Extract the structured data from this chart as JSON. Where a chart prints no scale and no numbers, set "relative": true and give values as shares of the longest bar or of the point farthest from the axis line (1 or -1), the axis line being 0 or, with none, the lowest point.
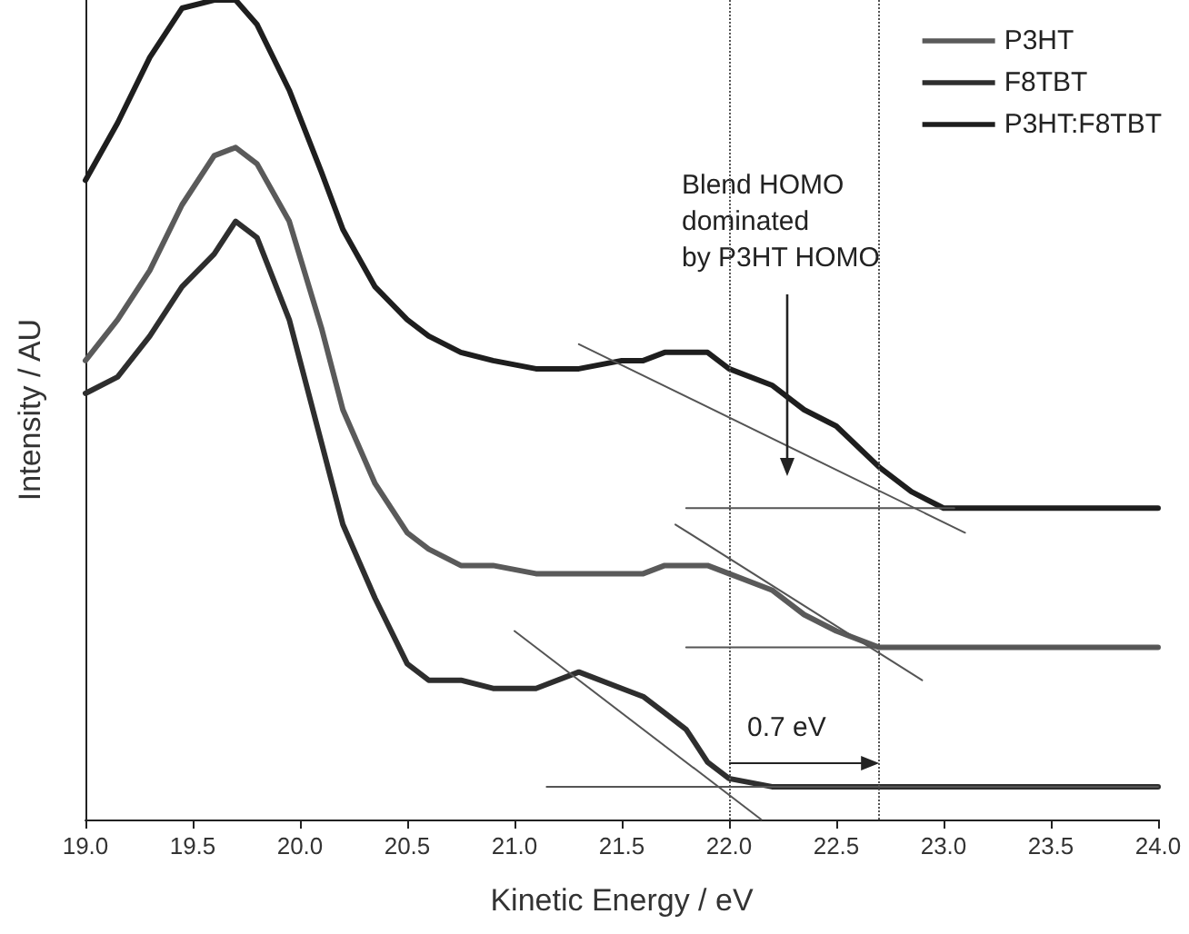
{
  "chart_data": {
    "type": "line",
    "relative": true,
    "xlabel": "Kinetic Energy / eV",
    "ylabel": "Intensity / AU",
    "xlim": [
      19,
      24
    ],
    "xticks": [
      {
        "value": 19,
        "label": "19.0"
      },
      19.5,
      {
        "value": 20,
        "label": "20.0"
      },
      20.5,
      {
        "value": 21,
        "label": "21.0"
      },
      21.5,
      {
        "value": 22,
        "label": "22.0"
      },
      22.5,
      {
        "value": 23,
        "label": "23.0"
      },
      23.5,
      {
        "value": 24,
        "label": "24.0"
      }
    ],
    "x": [
      19.0,
      19.15,
      19.3,
      19.45,
      19.6,
      19.7,
      19.8,
      19.95,
      20.1,
      20.2,
      20.35,
      20.5,
      20.6,
      20.75,
      20.9,
      21.1,
      21.3,
      21.5,
      21.6,
      21.7,
      21.8,
      21.9,
      22.0,
      22.2,
      22.35,
      22.5,
      22.7,
      22.85,
      23.0,
      23.2,
      23.5,
      24.0
    ],
    "series": [
      {
        "name": "P3HT",
        "color": "#5a5a5a",
        "values": [
          0.56,
          0.61,
          0.67,
          0.75,
          0.81,
          0.82,
          0.8,
          0.73,
          0.6,
          0.5,
          0.41,
          0.35,
          0.33,
          0.31,
          0.31,
          0.3,
          0.3,
          0.3,
          0.3,
          0.31,
          0.31,
          0.31,
          0.3,
          0.28,
          0.25,
          0.23,
          0.21,
          0.21,
          0.21,
          0.21,
          0.21,
          0.21
        ]
      },
      {
        "name": "F8TBT",
        "color": "#2e2e2e",
        "values": [
          0.52,
          0.54,
          0.59,
          0.65,
          0.69,
          0.73,
          0.71,
          0.61,
          0.46,
          0.36,
          0.27,
          0.19,
          0.17,
          0.17,
          0.16,
          0.16,
          0.18,
          0.16,
          0.15,
          0.13,
          0.11,
          0.07,
          0.05,
          0.04,
          0.04,
          0.04,
          0.04,
          0.04,
          0.04,
          0.04,
          0.04,
          0.04
        ]
      },
      {
        "name": "P3HT:F8TBT",
        "color": "#1e1e1e",
        "values": [
          0.78,
          0.85,
          0.93,
          0.99,
          1.0,
          1.0,
          0.97,
          0.89,
          0.79,
          0.72,
          0.65,
          0.61,
          0.59,
          0.57,
          0.56,
          0.55,
          0.55,
          0.56,
          0.56,
          0.57,
          0.57,
          0.57,
          0.55,
          0.53,
          0.5,
          0.48,
          0.43,
          0.4,
          0.38,
          0.38,
          0.38,
          0.38
        ]
      },
      {
        "color": "#555555",
        "x": [
          21.3,
          23.1
        ],
        "values": [
          0.58,
          0.35
        ]
      },
      {
        "color": "#555555",
        "x": [
          21.8,
          23.05
        ],
        "values": [
          0.38,
          0.38
        ]
      },
      {
        "color": "#555555",
        "x": [
          21.75,
          22.9
        ],
        "values": [
          0.36,
          0.17
        ]
      },
      {
        "color": "#555555",
        "x": [
          21.8,
          24.0
        ],
        "values": [
          0.21,
          0.21
        ]
      },
      {
        "color": "#555555",
        "x": [
          21.0,
          22.15
        ],
        "values": [
          0.23,
          0.0
        ]
      },
      {
        "color": "#555555",
        "x": [
          21.15,
          24.0
        ],
        "values": [
          0.04,
          0.04
        ]
      }
    ],
    "ref_lines": [
      {
        "axis": "x",
        "value": 22.7,
        "line_style": "dotted",
        "color": "#555555"
      },
      {
        "axis": "x",
        "value": 22.0,
        "line_style": "dotted",
        "color": "#555555"
      }
    ],
    "annotations": [
      "Blend HOMO\ndominated\nby P3HT HOMO",
      "0.7 eV"
    ],
    "legend": "top right",
    "grid": false,
    "line_style": "solid",
    "marker": "none"
  }
}
